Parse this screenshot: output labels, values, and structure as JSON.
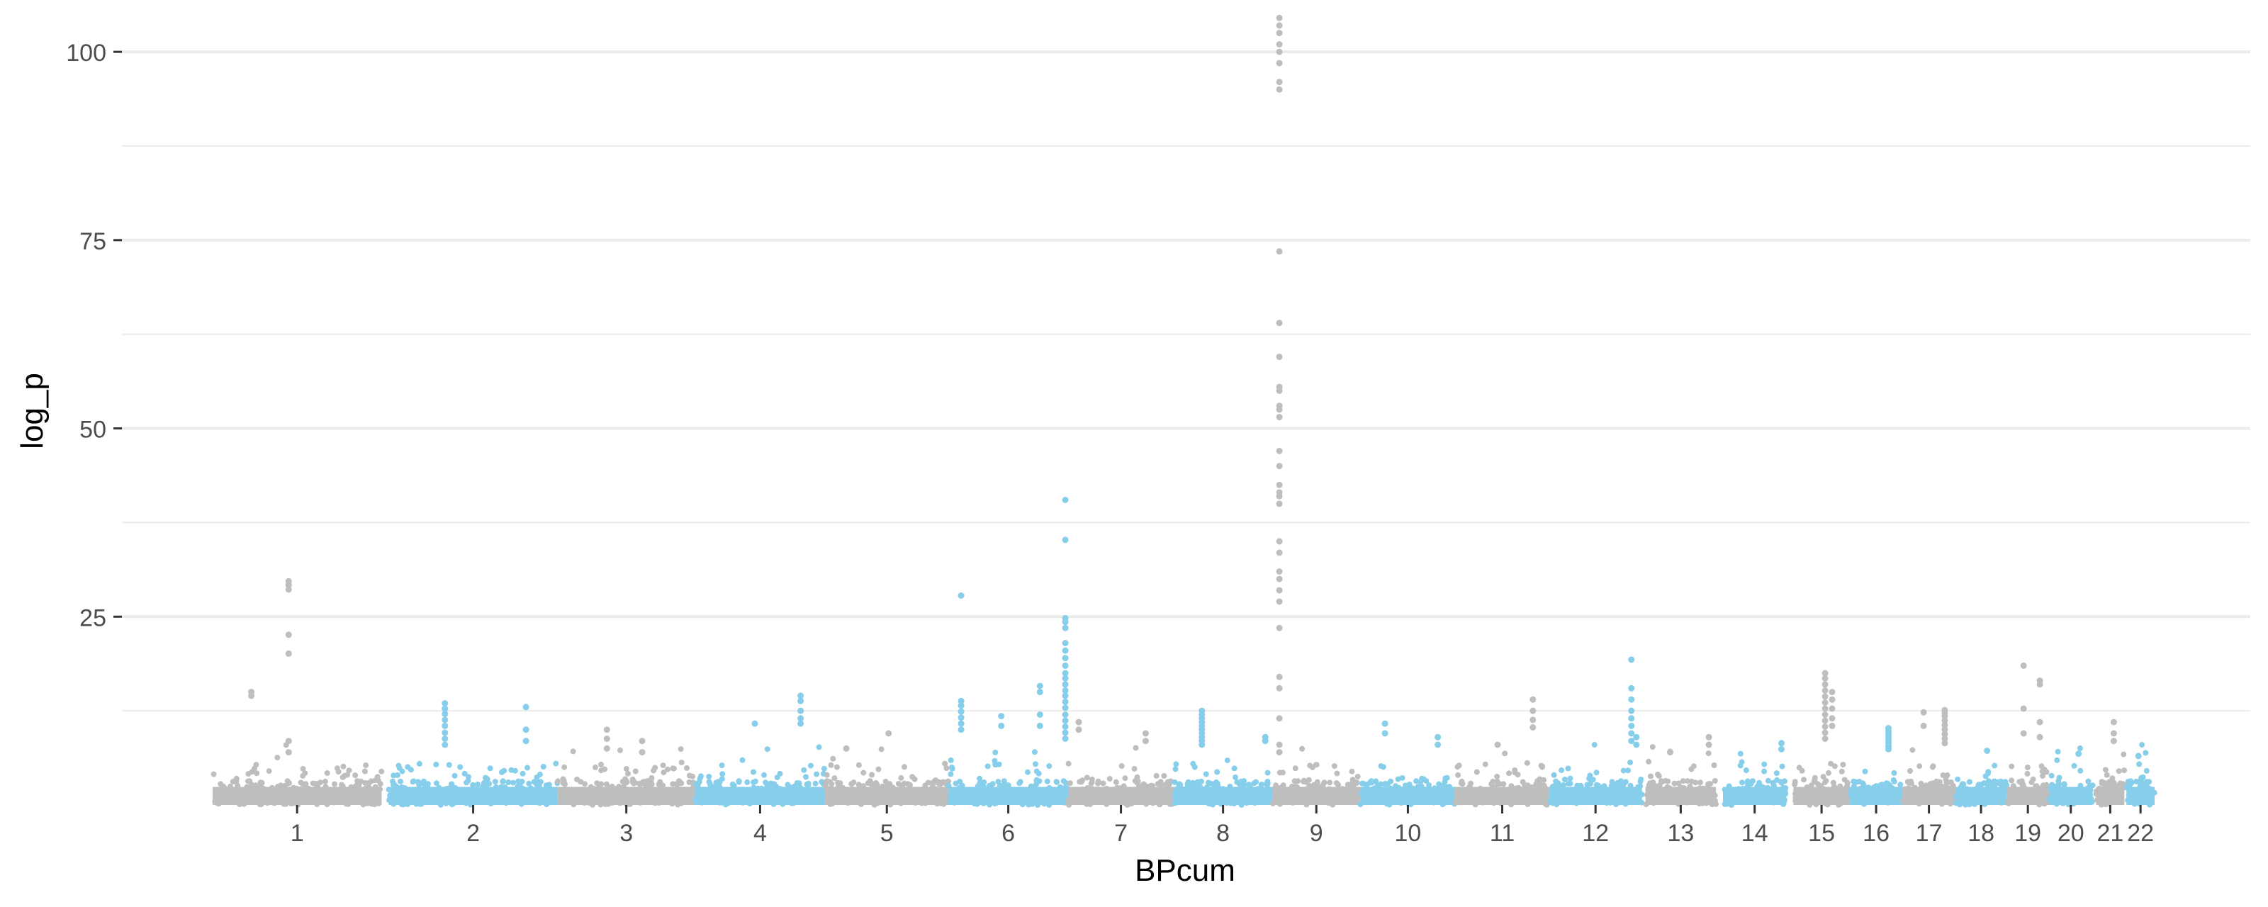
{
  "chart_data": {
    "type": "scatter",
    "subtype": "manhattan",
    "title": "",
    "xlabel": "BPcum",
    "ylabel": "log_p",
    "ylim": [
      0,
      105
    ],
    "y_ticks": [
      25,
      50,
      75,
      100
    ],
    "y_tick_labels": [
      "25",
      "50",
      "75",
      "100"
    ],
    "grid": true,
    "legend": "none",
    "colors": {
      "odd": "#bebebe",
      "even": "#87ceeb",
      "grid": "#ebebeb",
      "tick_text": "#4d4d4d"
    },
    "chromosomes": [
      {
        "label": "1",
        "start": 0,
        "end": 240,
        "peaks": [
          {
            "x": 55,
            "y": [
              15,
              14.5
            ]
          },
          {
            "x": 108,
            "y": [
              29.7,
              29.2,
              28.6,
              22.6,
              20.1,
              8.5,
              7
            ]
          }
        ]
      },
      {
        "label": "2",
        "start": 250,
        "end": 490,
        "peaks": [
          {
            "x": 330,
            "y": [
              13.5,
              12.8,
              12.1,
              11.3,
              10.5,
              9.6,
              8.8,
              8
            ]
          },
          {
            "x": 445,
            "y": [
              13,
              10,
              8.5
            ]
          }
        ]
      },
      {
        "label": "3",
        "start": 490,
        "end": 685,
        "peaks": [
          {
            "x": 560,
            "y": [
              10,
              8.8,
              7.5
            ]
          },
          {
            "x": 610,
            "y": [
              8.5,
              7
            ]
          }
        ]
      },
      {
        "label": "4",
        "start": 685,
        "end": 870,
        "peaks": [
          {
            "x": 770,
            "y": [
              10.8
            ]
          },
          {
            "x": 835,
            "y": [
              14.5,
              13.8,
              12.5,
              11.5,
              10.8
            ]
          }
        ]
      },
      {
        "label": "5",
        "start": 870,
        "end": 1045,
        "peaks": [
          {
            "x": 960,
            "y": [
              9.5
            ]
          },
          {
            "x": 900,
            "y": [
              7.5
            ]
          }
        ]
      },
      {
        "label": "6",
        "start": 1045,
        "end": 1215,
        "peaks": [
          {
            "x": 1063,
            "y": [
              27.8,
              13.8,
              13.2,
              12.4,
              11.6,
              10.8,
              10
            ]
          },
          {
            "x": 1120,
            "y": [
              11.8,
              10.5
            ]
          },
          {
            "x": 1175,
            "y": [
              15.8,
              15,
              12,
              10.5
            ]
          },
          {
            "x": 1211,
            "y": [
              40.5,
              35.2,
              24.8,
              24.3,
              23.5,
              21.5,
              20.5,
              19.5,
              18.5,
              17.5,
              16.8,
              16,
              15.2,
              14.5,
              13.7,
              12.9,
              12,
              11.2,
              10.4,
              9.6,
              8.8
            ]
          }
        ]
      },
      {
        "label": "7",
        "start": 1215,
        "end": 1365,
        "peaks": [
          {
            "x": 1230,
            "y": [
              11,
              10
            ]
          },
          {
            "x": 1325,
            "y": [
              9.5,
              8.5
            ]
          }
        ]
      },
      {
        "label": "8",
        "start": 1365,
        "end": 1505,
        "peaks": [
          {
            "x": 1405,
            "y": [
              12.5,
              12,
              11.5,
              11,
              10.5,
              10,
              9.5,
              9,
              8.5,
              8
            ]
          },
          {
            "x": 1495,
            "y": [
              9,
              8.5
            ]
          }
        ]
      },
      {
        "label": "9",
        "start": 1505,
        "end": 1630,
        "peaks": [
          {
            "x": 1515,
            "y": [
              104.5,
              103.5,
              102.5,
              101,
              100,
              98.5,
              96,
              95,
              73.5,
              64,
              59.5,
              55.5,
              55,
              53,
              52.5,
              51.5,
              47,
              45,
              42.5,
              41.5,
              41,
              40,
              35,
              33.5,
              31,
              30,
              28.5,
              27,
              23.5,
              17,
              15.5,
              11.5,
              8,
              7
            ]
          }
        ]
      },
      {
        "label": "10",
        "start": 1630,
        "end": 1765,
        "peaks": [
          {
            "x": 1665,
            "y": [
              10.8,
              9.5
            ]
          },
          {
            "x": 1740,
            "y": [
              9,
              8
            ]
          }
        ]
      },
      {
        "label": "11",
        "start": 1765,
        "end": 1898,
        "peaks": [
          {
            "x": 1875,
            "y": [
              14,
              12.5,
              11.3,
              10.3
            ]
          },
          {
            "x": 1825,
            "y": [
              8
            ]
          }
        ]
      },
      {
        "label": "12",
        "start": 1898,
        "end": 2030,
        "peaks": [
          {
            "x": 2015,
            "y": [
              19.3,
              15.5,
              14,
              12.5,
              11.5,
              10.5,
              9.5,
              8.5
            ]
          },
          {
            "x": 2022,
            "y": [
              9,
              8
            ]
          }
        ]
      },
      {
        "label": "13",
        "start": 2035,
        "end": 2135,
        "peaks": [
          {
            "x": 2125,
            "y": [
              9,
              8
            ]
          },
          {
            "x": 2070,
            "y": [
              7
            ]
          }
        ]
      },
      {
        "label": "14",
        "start": 2145,
        "end": 2235,
        "peaks": [
          {
            "x": 2228,
            "y": [
              8.2,
              7.4
            ]
          }
        ]
      },
      {
        "label": "15",
        "start": 2245,
        "end": 2325,
        "peaks": [
          {
            "x": 2290,
            "y": [
              17.5,
              16.8,
              16,
              15.2,
              14.4,
              13.6,
              12.8,
              12,
              11.2,
              10.4,
              9.6,
              8.8
            ]
          },
          {
            "x": 2300,
            "y": [
              15,
              14,
              12.8,
              11.5,
              10.5
            ]
          }
        ]
      },
      {
        "label": "16",
        "start": 2325,
        "end": 2400,
        "peaks": [
          {
            "x": 2380,
            "y": [
              10.2,
              9.8,
              9.4,
              9,
              8.6,
              8.2,
              7.8,
              7.4
            ]
          }
        ]
      },
      {
        "label": "17",
        "start": 2400,
        "end": 2475,
        "peaks": [
          {
            "x": 2460,
            "y": [
              12.6,
              12.2,
              11.8,
              11.2,
              10.6,
              10,
              9.4,
              8.8,
              8.2
            ]
          },
          {
            "x": 2430,
            "y": [
              12.3,
              10.5
            ]
          }
        ]
      },
      {
        "label": "18",
        "start": 2475,
        "end": 2548,
        "peaks": [
          {
            "x": 2520,
            "y": [
              7.2
            ]
          }
        ]
      },
      {
        "label": "19",
        "start": 2548,
        "end": 2608,
        "peaks": [
          {
            "x": 2572,
            "y": [
              18.5,
              12.8,
              9.5
            ]
          },
          {
            "x": 2595,
            "y": [
              16.5,
              16,
              11,
              9
            ]
          }
        ]
      },
      {
        "label": "20",
        "start": 2608,
        "end": 2670,
        "peaks": [
          {
            "x": 2650,
            "y": [
              6.8
            ]
          }
        ]
      },
      {
        "label": "21",
        "start": 2675,
        "end": 2715,
        "peaks": [
          {
            "x": 2700,
            "y": [
              11,
              9.5,
              8.5
            ]
          }
        ]
      },
      {
        "label": "22",
        "start": 2718,
        "end": 2758,
        "peaks": [
          {
            "x": 2735,
            "y": [
              6.5
            ]
          }
        ]
      }
    ]
  }
}
